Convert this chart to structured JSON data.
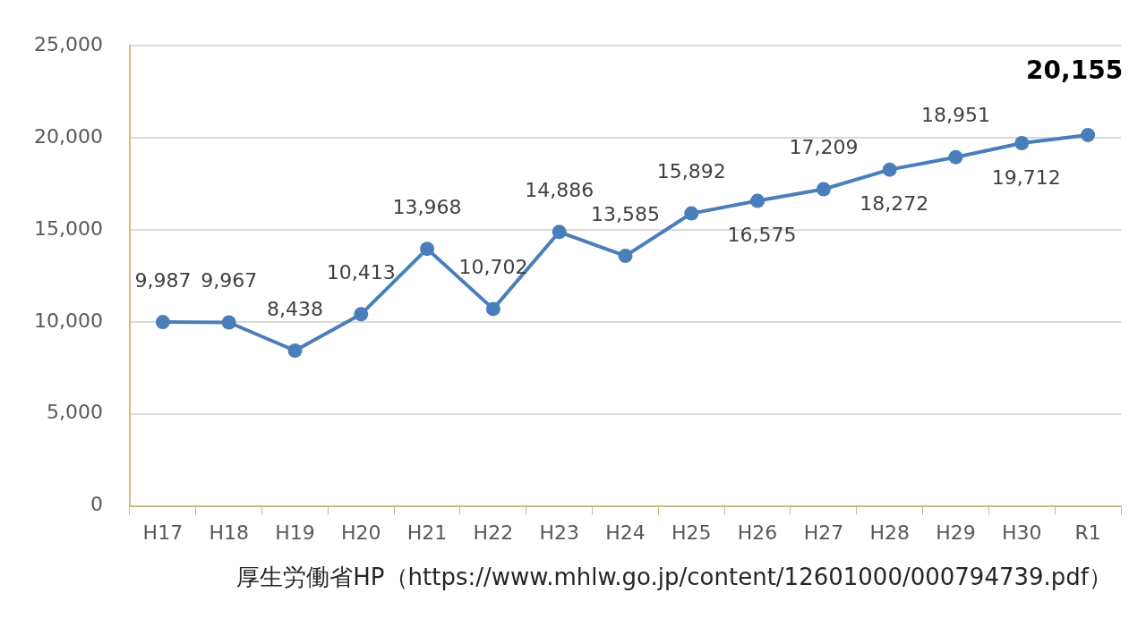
{
  "chart_data": {
    "type": "line",
    "categories": [
      "H17",
      "H18",
      "H19",
      "H20",
      "H21",
      "H22",
      "H23",
      "H24",
      "H25",
      "H26",
      "H27",
      "H28",
      "H29",
      "H30",
      "R1"
    ],
    "series": [
      {
        "color": "#4a7ebb",
        "values": [
          9987,
          9967,
          8438,
          10413,
          13968,
          10702,
          14886,
          13585,
          15892,
          16575,
          17209,
          18272,
          18951,
          19712,
          20155
        ],
        "value_labels": [
          "9,987",
          "9,967",
          "8,438",
          "10,413",
          "13,968",
          "10,702",
          "14,886",
          "13,585",
          "15,892",
          "16,575",
          "17,209",
          "18,272",
          "18,951",
          "19,712",
          "20,155"
        ]
      }
    ],
    "ylim": [
      0,
      25000
    ],
    "yticks": [
      0,
      {
        "value": 5000,
        "label": "5,000"
      },
      {
        "value": 10000,
        "label": "10,000"
      },
      {
        "value": 15000,
        "label": "15,000"
      },
      {
        "value": 20000,
        "label": "20,000"
      },
      {
        "value": 25000,
        "label": "25,000"
      }
    ],
    "grid": "y",
    "legend": false,
    "marker": "circle",
    "line_style": "solid",
    "annotations": [
      "厚生労働省HP（https://www.mhlw.go.jp/content/12601000/000794739.pdf）"
    ]
  }
}
